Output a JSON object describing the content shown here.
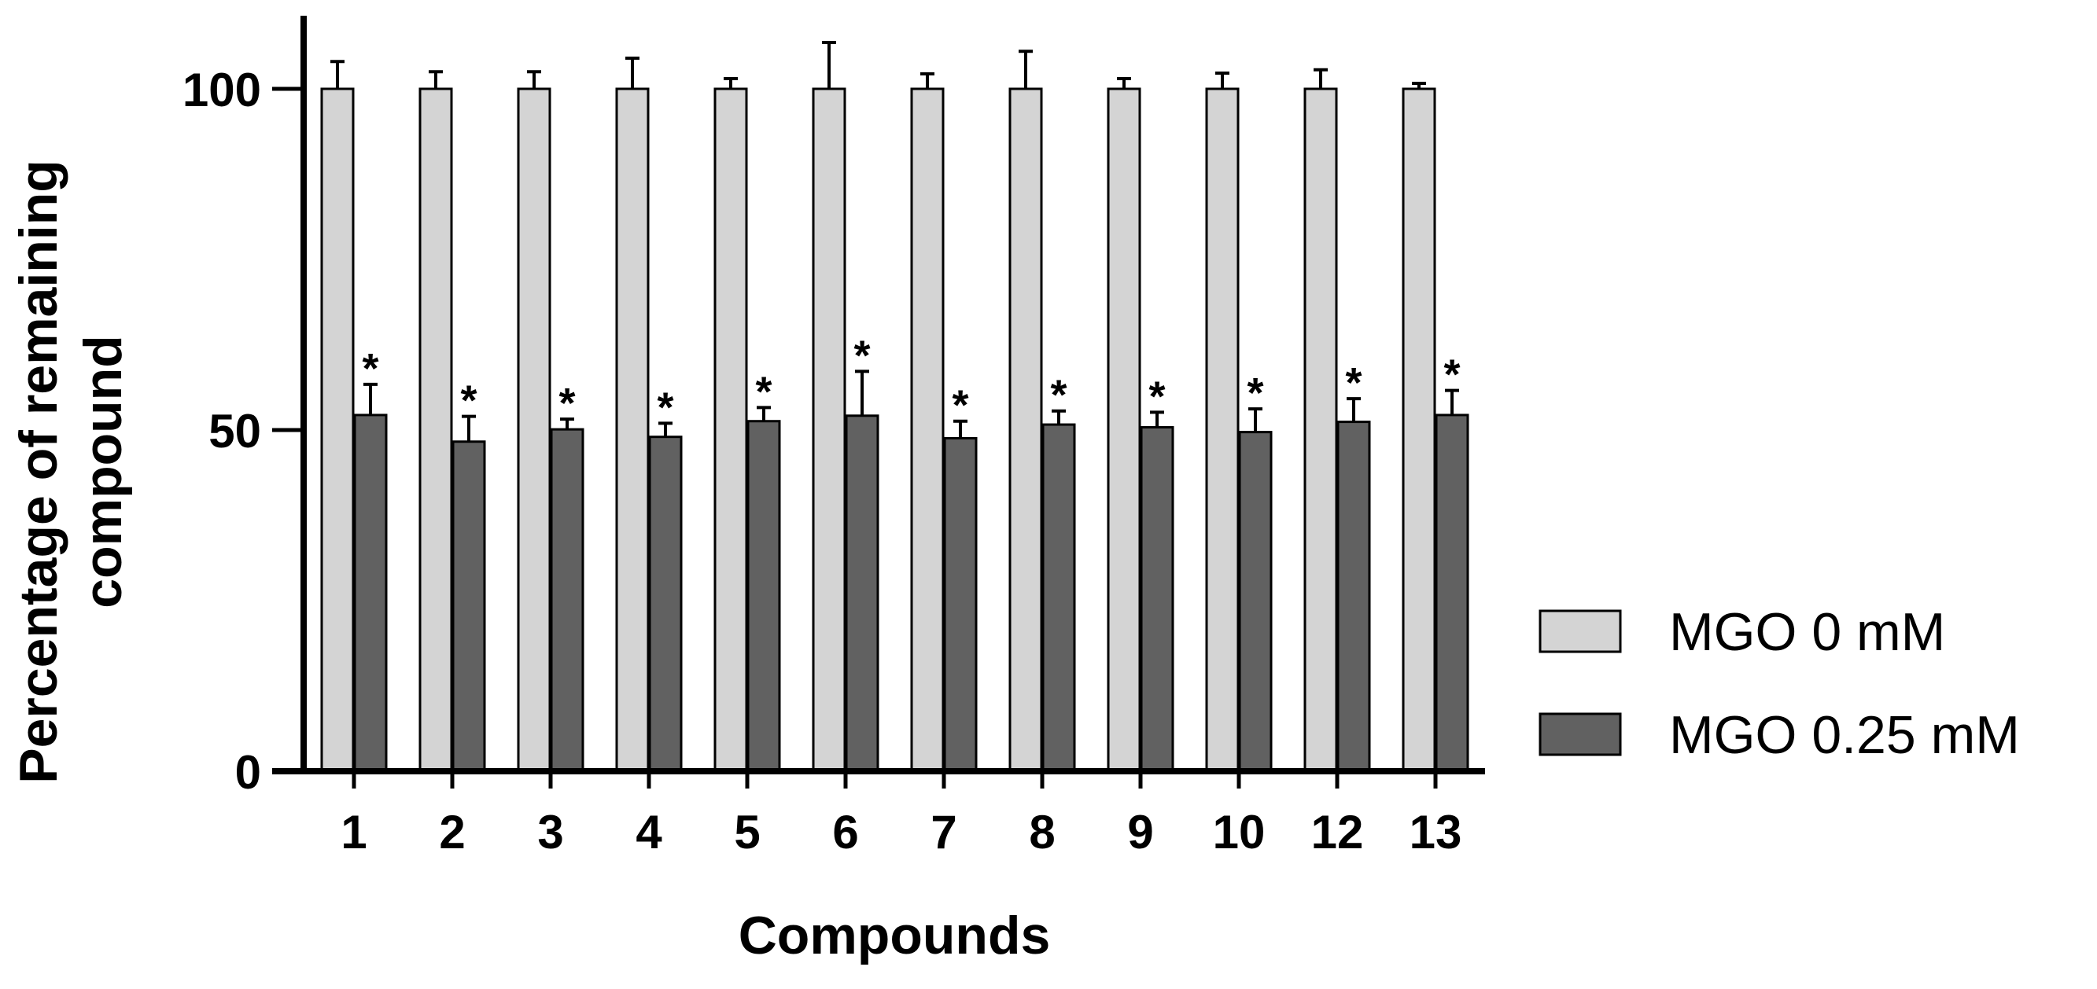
{
  "colors": {
    "series_0": "#d4d4d4",
    "series_1": "#616161",
    "stroke": "#000000"
  },
  "chart_data": {
    "type": "bar",
    "categories": [
      "1",
      "2",
      "3",
      "4",
      "5",
      "6",
      "7",
      "8",
      "9",
      "10",
      "12",
      "13"
    ],
    "series": [
      {
        "name": "MGO 0 mM",
        "values": [
          100,
          100,
          100,
          100,
          100,
          100,
          100,
          100,
          100,
          100,
          100,
          100
        ],
        "errors": [
          4,
          2.5,
          2.5,
          4.5,
          1.5,
          6.8,
          2.2,
          5.5,
          1.5,
          2.3,
          2.8,
          0.8
        ]
      },
      {
        "name": "MGO 0.25 mM",
        "values": [
          52.2,
          48.3,
          50.1,
          49,
          51.3,
          52.1,
          48.8,
          50.8,
          50.4,
          49.7,
          51.2,
          52.2
        ],
        "errors": [
          4.5,
          3.7,
          1.5,
          2,
          2,
          6.5,
          2.5,
          2,
          2.2,
          3.4,
          3.4,
          3.6
        ]
      }
    ],
    "annotations": {
      "marker": "*",
      "series": "MGO 0.25 mM",
      "categories": [
        "1",
        "2",
        "3",
        "4",
        "5",
        "6",
        "7",
        "8",
        "9",
        "10",
        "12",
        "13"
      ]
    },
    "ylabel_lines": [
      "Percentage of remaining",
      "compound"
    ],
    "xlabel": "Compounds",
    "yticks": [
      "0",
      "50",
      "100"
    ],
    "ylim": [
      0,
      110
    ],
    "grid": false,
    "legend_position": "right"
  }
}
